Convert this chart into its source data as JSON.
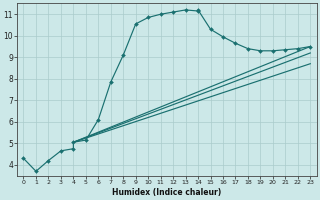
{
  "xlabel": "Humidex (Indice chaleur)",
  "bg_color": "#cce8e8",
  "grid_color": "#aacccc",
  "line_color": "#1a7070",
  "xlim": [
    -0.5,
    23.5
  ],
  "ylim": [
    3.5,
    11.5
  ],
  "xtick_labels": [
    "0",
    "1",
    "2",
    "3",
    "4",
    "5",
    "6",
    "7",
    "8",
    "9",
    "10",
    "11",
    "12",
    "13",
    "14",
    "15",
    "16",
    "17",
    "18",
    "19",
    "20",
    "21",
    "22",
    "23"
  ],
  "xtick_vals": [
    0,
    1,
    2,
    3,
    4,
    5,
    6,
    7,
    8,
    9,
    10,
    11,
    12,
    13,
    14,
    15,
    16,
    17,
    18,
    19,
    20,
    21,
    22,
    23
  ],
  "ytick_vals": [
    4,
    5,
    6,
    7,
    8,
    9,
    10,
    11
  ],
  "curve_x": [
    0,
    1,
    2,
    3,
    4,
    4,
    5,
    6,
    7,
    8,
    9,
    10,
    11,
    12,
    13,
    14,
    14,
    15,
    16,
    17,
    18,
    19,
    20,
    21,
    22,
    23
  ],
  "curve_y": [
    4.3,
    3.7,
    4.2,
    4.65,
    4.75,
    5.05,
    5.15,
    6.1,
    7.85,
    9.1,
    10.55,
    10.85,
    11.0,
    11.1,
    11.2,
    11.15,
    11.2,
    10.3,
    9.95,
    9.65,
    9.4,
    9.3,
    9.3,
    9.35,
    9.4,
    9.5
  ],
  "line1_x": [
    4,
    23
  ],
  "line1_y": [
    5.05,
    9.5
  ],
  "line2_x": [
    4,
    23
  ],
  "line2_y": [
    5.05,
    9.2
  ],
  "line3_x": [
    4,
    23
  ],
  "line3_y": [
    5.05,
    8.7
  ]
}
